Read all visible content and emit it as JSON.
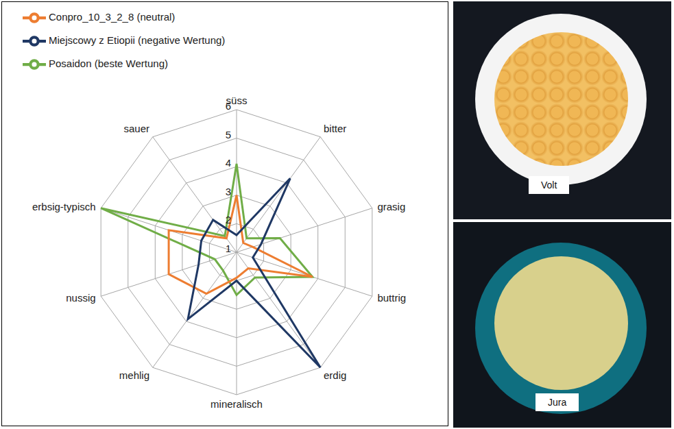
{
  "chart_data": {
    "type": "radar",
    "categories": [
      "süss",
      "bitter",
      "grasig",
      "buttrig",
      "erdig",
      "mineralisch",
      "mehlig",
      "nussig",
      "erbsig-typisch",
      "sauer"
    ],
    "series": [
      {
        "name": "Posaidon (beste Wertung)",
        "color": "#70ad47",
        "values": [
          4.1,
          1.6,
          2.6,
          3.8,
          2.1,
          2.5,
          1.8,
          1.8,
          6.0,
          1.7
        ]
      },
      {
        "name": "Conpro_10_3_2_8 (neutral)",
        "color": "#ed7d31",
        "values": [
          3.0,
          1.4,
          1.6,
          3.8,
          1.7,
          1.9,
          2.8,
          3.5,
          3.5,
          1.6
        ]
      },
      {
        "name": "Miejscowy z Etiopii (negative Wertung)",
        "color": "#1f3864",
        "values": [
          1.6,
          4.2,
          1.9,
          1.6,
          6.0,
          2.0,
          3.9,
          2.4,
          2.3,
          2.4
        ]
      }
    ],
    "ylim": [
      1,
      6
    ],
    "yticks": [
      1,
      2,
      3,
      4,
      5,
      6
    ],
    "grid": true,
    "legend": "top-left"
  },
  "images": [
    {
      "label": "Volt"
    },
    {
      "label": "Jura"
    }
  ]
}
